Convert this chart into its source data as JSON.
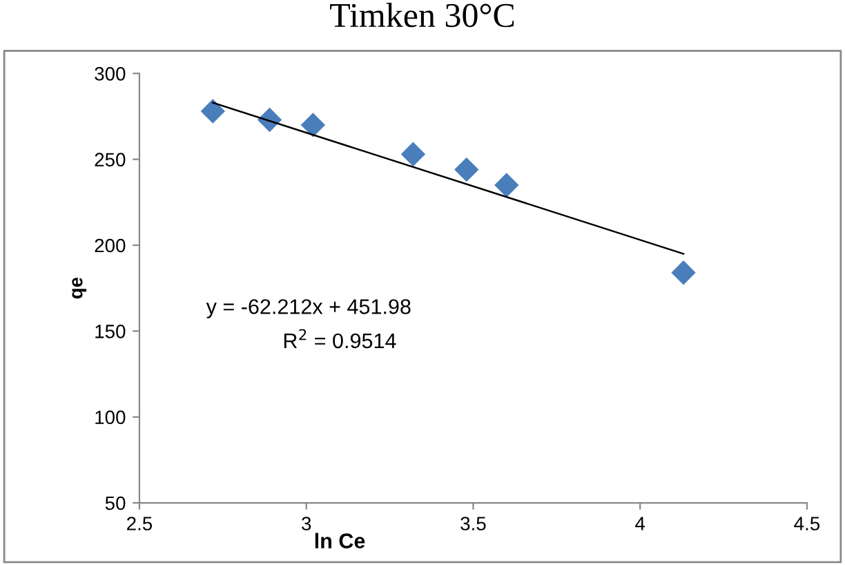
{
  "chart_data": {
    "type": "scatter",
    "title": "Timken 30°C",
    "xlabel": "ln Ce",
    "ylabel": "qe",
    "xlim": [
      2.5,
      4.5
    ],
    "xticks": [
      2.5,
      3,
      3.5,
      4,
      4.5
    ],
    "ylim": [
      50,
      300
    ],
    "yticks": [
      50,
      100,
      150,
      200,
      250,
      300
    ],
    "grid": false,
    "legend": false,
    "series": [
      {
        "marker": "diamond",
        "color": "#4a7ebb",
        "x": [
          2.72,
          2.89,
          3.02,
          3.32,
          3.48,
          3.6,
          4.13
        ],
        "values": [
          278,
          273,
          270,
          253,
          244,
          235,
          184
        ]
      },
      {
        "type": "line",
        "marker": "none",
        "color": "#000000",
        "x": [
          2.72,
          4.13
        ],
        "values": [
          283,
          195
        ]
      }
    ],
    "annotations": [
      "y = -62.212x + 451.98",
      "R$^{2}$ = 0.9514"
    ]
  }
}
